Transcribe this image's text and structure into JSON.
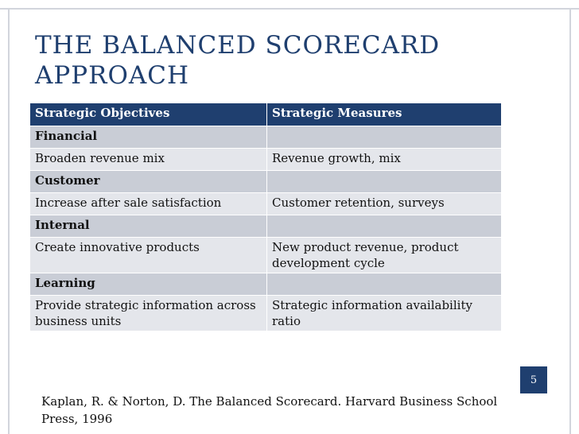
{
  "slide": {
    "title_line1": "THE BALANCED SCORECARD",
    "title_line2": "APPROACH",
    "page_number": "5",
    "source": "Kaplan, R. & Norton, D. The Balanced Scorecard. Harvard Business School Press, 1996"
  },
  "table": {
    "headers": [
      "Strategic Objectives",
      "Strategic Measures"
    ],
    "rows": [
      {
        "type": "category",
        "cells": [
          "Financial",
          ""
        ]
      },
      {
        "type": "row",
        "cells": [
          "Broaden revenue mix",
          "Revenue growth, mix"
        ]
      },
      {
        "type": "category",
        "cells": [
          "Customer",
          ""
        ]
      },
      {
        "type": "row",
        "cells": [
          "Increase after sale satisfaction",
          "Customer retention, surveys"
        ]
      },
      {
        "type": "category",
        "cells": [
          "Internal",
          ""
        ]
      },
      {
        "type": "row",
        "cells": [
          "Create innovative products",
          "New product revenue, product development cycle"
        ]
      },
      {
        "type": "category",
        "cells": [
          "Learning",
          ""
        ]
      },
      {
        "type": "row",
        "cells": [
          "Provide strategic information across business units",
          "Strategic information availability ratio"
        ]
      }
    ]
  },
  "colors": {
    "accent": "#1f3f6f",
    "category_bg": "#c9cdd6",
    "row_bg": "#e4e6eb"
  }
}
